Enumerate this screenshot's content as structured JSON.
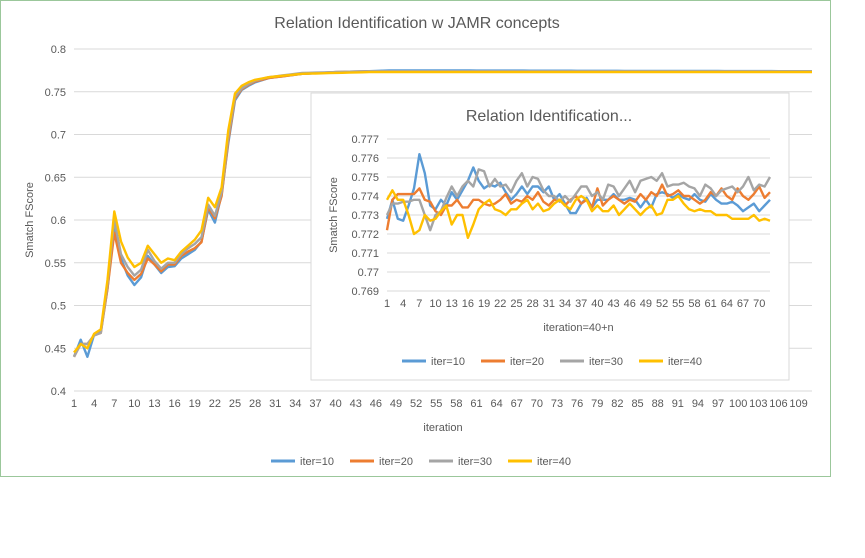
{
  "chart_data": [
    {
      "type": "line",
      "title": "Relation Identification w JAMR concepts",
      "xlabel": "iteration",
      "ylabel": "Smatch FScore",
      "ylim": [
        0.4,
        0.8
      ],
      "yticks": [
        "0.4",
        "0.45",
        "0.5",
        "0.55",
        "0.6",
        "0.65",
        "0.7",
        "0.75",
        "0.8"
      ],
      "x_range": [
        1,
        111
      ],
      "xtick_labels": [
        "1",
        "4",
        "7",
        "10",
        "13",
        "16",
        "19",
        "22",
        "25",
        "28",
        "31",
        "34",
        "37",
        "40",
        "43",
        "46",
        "49",
        "52",
        "55",
        "58",
        "61",
        "64",
        "67",
        "70",
        "73",
        "76",
        "79",
        "82",
        "85",
        "88",
        "91",
        "94",
        "97",
        "100",
        "103",
        "106",
        "109"
      ],
      "grid": "horizontal",
      "legend": "bottom",
      "series": [
        {
          "name": "iter=10",
          "color": "#5b9bd5",
          "key_points": [
            [
              1,
              0.44
            ],
            [
              2,
              0.46
            ],
            [
              3,
              0.44
            ],
            [
              4,
              0.466
            ],
            [
              5,
              0.47
            ],
            [
              6,
              0.52
            ],
            [
              7,
              0.595
            ],
            [
              8,
              0.555
            ],
            [
              9,
              0.535
            ],
            [
              10,
              0.524
            ],
            [
              11,
              0.533
            ],
            [
              12,
              0.558
            ],
            [
              13,
              0.548
            ],
            [
              14,
              0.538
            ],
            [
              15,
              0.545
            ],
            [
              16,
              0.546
            ],
            [
              17,
              0.555
            ],
            [
              18,
              0.56
            ],
            [
              19,
              0.565
            ],
            [
              20,
              0.575
            ],
            [
              21,
              0.612
            ],
            [
              22,
              0.597
            ],
            [
              23,
              0.63
            ],
            [
              24,
              0.69
            ],
            [
              25,
              0.74
            ],
            [
              26,
              0.752
            ],
            [
              27,
              0.757
            ],
            [
              28,
              0.761
            ],
            [
              30,
              0.766
            ],
            [
              35,
              0.771
            ],
            [
              40,
              0.773
            ],
            [
              45,
              0.774
            ],
            [
              48,
              0.775
            ],
            [
              111,
              0.774
            ]
          ]
        },
        {
          "name": "iter=20",
          "color": "#ed7d31",
          "key_points": [
            [
              1,
              0.44
            ],
            [
              2,
              0.455
            ],
            [
              3,
              0.455
            ],
            [
              4,
              0.465
            ],
            [
              5,
              0.468
            ],
            [
              6,
              0.52
            ],
            [
              7,
              0.585
            ],
            [
              8,
              0.55
            ],
            [
              9,
              0.538
            ],
            [
              10,
              0.53
            ],
            [
              11,
              0.537
            ],
            [
              12,
              0.555
            ],
            [
              13,
              0.548
            ],
            [
              14,
              0.54
            ],
            [
              15,
              0.548
            ],
            [
              16,
              0.548
            ],
            [
              17,
              0.558
            ],
            [
              18,
              0.563
            ],
            [
              19,
              0.567
            ],
            [
              20,
              0.574
            ],
            [
              21,
              0.615
            ],
            [
              22,
              0.602
            ],
            [
              23,
              0.628
            ],
            [
              24,
              0.693
            ],
            [
              25,
              0.742
            ],
            [
              26,
              0.753
            ],
            [
              27,
              0.758
            ],
            [
              28,
              0.762
            ],
            [
              30,
              0.766
            ],
            [
              35,
              0.771
            ],
            [
              40,
              0.773
            ],
            [
              45,
              0.774
            ],
            [
              111,
              0.774
            ]
          ]
        },
        {
          "name": "iter=30",
          "color": "#a5a5a5",
          "key_points": [
            [
              1,
              0.44
            ],
            [
              2,
              0.455
            ],
            [
              3,
              0.455
            ],
            [
              4,
              0.465
            ],
            [
              5,
              0.468
            ],
            [
              6,
              0.525
            ],
            [
              7,
              0.6
            ],
            [
              8,
              0.56
            ],
            [
              9,
              0.545
            ],
            [
              10,
              0.535
            ],
            [
              11,
              0.542
            ],
            [
              12,
              0.565
            ],
            [
              13,
              0.552
            ],
            [
              14,
              0.543
            ],
            [
              15,
              0.55
            ],
            [
              16,
              0.55
            ],
            [
              17,
              0.56
            ],
            [
              18,
              0.567
            ],
            [
              19,
              0.572
            ],
            [
              20,
              0.58
            ],
            [
              21,
              0.618
            ],
            [
              22,
              0.605
            ],
            [
              23,
              0.632
            ],
            [
              24,
              0.698
            ],
            [
              25,
              0.744
            ],
            [
              26,
              0.754
            ],
            [
              27,
              0.759
            ],
            [
              28,
              0.763
            ],
            [
              30,
              0.767
            ],
            [
              35,
              0.772
            ],
            [
              40,
              0.773
            ],
            [
              45,
              0.774
            ],
            [
              111,
              0.774
            ]
          ]
        },
        {
          "name": "iter=40",
          "color": "#ffc000",
          "key_points": [
            [
              1,
              0.445
            ],
            [
              2,
              0.455
            ],
            [
              3,
              0.45
            ],
            [
              4,
              0.467
            ],
            [
              5,
              0.472
            ],
            [
              6,
              0.53
            ],
            [
              7,
              0.61
            ],
            [
              8,
              0.575
            ],
            [
              9,
              0.556
            ],
            [
              10,
              0.545
            ],
            [
              11,
              0.55
            ],
            [
              12,
              0.57
            ],
            [
              13,
              0.56
            ],
            [
              14,
              0.55
            ],
            [
              15,
              0.555
            ],
            [
              16,
              0.553
            ],
            [
              17,
              0.563
            ],
            [
              18,
              0.57
            ],
            [
              19,
              0.577
            ],
            [
              20,
              0.588
            ],
            [
              21,
              0.626
            ],
            [
              22,
              0.615
            ],
            [
              23,
              0.638
            ],
            [
              24,
              0.705
            ],
            [
              25,
              0.748
            ],
            [
              26,
              0.757
            ],
            [
              27,
              0.761
            ],
            [
              28,
              0.764
            ],
            [
              30,
              0.767
            ],
            [
              35,
              0.771
            ],
            [
              40,
              0.772
            ],
            [
              45,
              0.773
            ],
            [
              111,
              0.773
            ]
          ]
        }
      ]
    },
    {
      "type": "line",
      "title": "Relation Identification...",
      "xlabel": "iteration=40+n",
      "ylabel": "Smatch FScore",
      "ylim": [
        0.769,
        0.777
      ],
      "yticks": [
        "0.769",
        "0.77",
        "0.771",
        "0.772",
        "0.773",
        "0.774",
        "0.775",
        "0.776",
        "0.777"
      ],
      "x_range": [
        1,
        72
      ],
      "xtick_labels": [
        "1",
        "4",
        "7",
        "10",
        "13",
        "16",
        "19",
        "22",
        "25",
        "28",
        "31",
        "34",
        "37",
        "40",
        "43",
        "46",
        "49",
        "52",
        "55",
        "58",
        "61",
        "64",
        "67",
        "70"
      ],
      "grid": "horizontal",
      "legend": "bottom",
      "series": [
        {
          "name": "iter=10",
          "color": "#5b9bd5",
          "values": [
            0.7728,
            0.7738,
            0.7728,
            0.7727,
            0.7735,
            0.7744,
            0.7762,
            0.7752,
            0.7735,
            0.7733,
            0.7738,
            0.7735,
            0.7742,
            0.7738,
            0.7743,
            0.7748,
            0.7755,
            0.7748,
            0.7744,
            0.7746,
            0.7745,
            0.7747,
            0.7742,
            0.7738,
            0.7741,
            0.7745,
            0.7741,
            0.7745,
            0.7745,
            0.7742,
            0.7745,
            0.7738,
            0.7741,
            0.7736,
            0.7731,
            0.7731,
            0.7736,
            0.7739,
            0.7734,
            0.7738,
            0.7738,
            0.7738,
            0.7741,
            0.7738,
            0.7738,
            0.7739,
            0.7738,
            0.7734,
            0.7738,
            0.7734,
            0.7741,
            0.7742,
            0.7741,
            0.7739,
            0.7741,
            0.7739,
            0.7738,
            0.7741,
            0.7738,
            0.7737,
            0.7741,
            0.7738,
            0.7736,
            0.7736,
            0.7737,
            0.7735,
            0.7732,
            0.7734,
            0.7736,
            0.7732,
            0.7735,
            0.7738
          ]
        },
        {
          "name": "iter=20",
          "color": "#ed7d31",
          "values": [
            0.7722,
            0.7738,
            0.7741,
            0.7741,
            0.7741,
            0.7741,
            0.7744,
            0.7738,
            0.7737,
            0.7732,
            0.773,
            0.7735,
            0.7735,
            0.7738,
            0.7734,
            0.7734,
            0.7738,
            0.7738,
            0.7736,
            0.7735,
            0.7736,
            0.7738,
            0.7741,
            0.7736,
            0.7738,
            0.7737,
            0.774,
            0.7738,
            0.7742,
            0.7737,
            0.7735,
            0.7738,
            0.7738,
            0.7735,
            0.7738,
            0.774,
            0.7736,
            0.7738,
            0.7734,
            0.7744,
            0.7735,
            0.7738,
            0.774,
            0.7738,
            0.7736,
            0.7738,
            0.7737,
            0.7741,
            0.7738,
            0.7742,
            0.774,
            0.7746,
            0.774,
            0.7741,
            0.7743,
            0.774,
            0.774,
            0.7738,
            0.7736,
            0.7738,
            0.7742,
            0.774,
            0.7744,
            0.774,
            0.7738,
            0.7744,
            0.774,
            0.7738,
            0.7741,
            0.7745,
            0.7739,
            0.7742
          ]
        },
        {
          "name": "iter=30",
          "color": "#a5a5a5",
          "values": [
            0.773,
            0.7736,
            0.7736,
            0.7737,
            0.7737,
            0.7738,
            0.7738,
            0.773,
            0.7722,
            0.773,
            0.7732,
            0.7739,
            0.7745,
            0.774,
            0.7745,
            0.7748,
            0.7745,
            0.7754,
            0.7753,
            0.7745,
            0.7749,
            0.7745,
            0.7746,
            0.7742,
            0.7748,
            0.7752,
            0.7745,
            0.775,
            0.7749,
            0.7743,
            0.774,
            0.774,
            0.7737,
            0.774,
            0.7737,
            0.7741,
            0.7745,
            0.7745,
            0.774,
            0.7742,
            0.7738,
            0.7746,
            0.7745,
            0.774,
            0.7744,
            0.7748,
            0.7742,
            0.7748,
            0.7749,
            0.775,
            0.7748,
            0.7752,
            0.7745,
            0.7746,
            0.7746,
            0.7747,
            0.7745,
            0.7744,
            0.774,
            0.7746,
            0.7744,
            0.774,
            0.7743,
            0.7744,
            0.7745,
            0.7742,
            0.7745,
            0.775,
            0.7743,
            0.7746,
            0.7745,
            0.775
          ]
        },
        {
          "name": "iter=40",
          "color": "#ffc000",
          "values": [
            0.7738,
            0.7743,
            0.7738,
            0.7738,
            0.773,
            0.772,
            0.7722,
            0.773,
            0.7727,
            0.7728,
            0.7732,
            0.7735,
            0.7725,
            0.773,
            0.773,
            0.7718,
            0.7725,
            0.7733,
            0.7736,
            0.7738,
            0.7733,
            0.7732,
            0.773,
            0.7733,
            0.7733,
            0.7736,
            0.7738,
            0.7733,
            0.7736,
            0.7732,
            0.7733,
            0.7736,
            0.7738,
            0.7735,
            0.7733,
            0.7738,
            0.774,
            0.7738,
            0.7732,
            0.7735,
            0.7732,
            0.7732,
            0.7735,
            0.773,
            0.7733,
            0.7736,
            0.7733,
            0.773,
            0.7733,
            0.7735,
            0.773,
            0.7731,
            0.7738,
            0.7738,
            0.774,
            0.7736,
            0.7733,
            0.7732,
            0.7733,
            0.7732,
            0.7732,
            0.773,
            0.773,
            0.773,
            0.7728,
            0.7728,
            0.7728,
            0.7728,
            0.773,
            0.7727,
            0.7728,
            0.7727
          ]
        }
      ]
    }
  ]
}
